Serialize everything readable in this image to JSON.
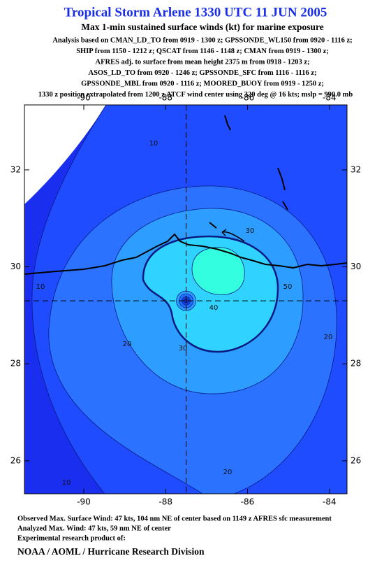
{
  "chart_data": {
    "type": "contour",
    "title": "Tropical Storm Arlene 1330 UTC 11 JUN 2005",
    "subtitle": "Max 1-min sustained surface winds (kt) for marine exposure",
    "notes": [
      "Analysis based on  CMAN_LD_TO from 0919 - 1300 z;  GPSSONDE_WL150 from 0920 - 1116 z;",
      "SHIP from 1150 - 1212 z;  QSCAT from 1146 - 1148 z;  CMAN from 0919 - 1300 z;",
      "AFRES adj. to surface from mean height 2375 m from 0918 - 1203 z;",
      "ASOS_LD_TO from 0920 - 1246 z;  GPSSONDE_SFC from 1116 - 1116 z;",
      "GPSSONDE_MBL from 0920 - 1116 z;  MOORED_BUOY from 0919 - 1250 z;",
      "1330 z position extrapolated from 1200 z ATCF wind center using 320 deg @ 16 kts; mslp = 990.0 mb"
    ],
    "xlim": [
      -91.45,
      -83.57
    ],
    "ylim": [
      25.32,
      33.34
    ],
    "xticks": [
      -90,
      -88,
      -86,
      -84
    ],
    "yticks": [
      26,
      28,
      30,
      32
    ],
    "background_color": "#1a2ef0",
    "contours": [
      {
        "level": 10,
        "color": "#1f4cff"
      },
      {
        "level": 20,
        "color": "#2a72ff"
      },
      {
        "level": 30,
        "color": "#2d9eff"
      },
      {
        "level": 40,
        "color": "#30d2ff"
      },
      {
        "level": 50,
        "color": "#33ffe0"
      }
    ],
    "contour_labels": [
      10,
      10,
      10,
      20,
      20,
      20,
      30,
      30,
      40,
      50
    ],
    "center": {
      "x": -87.5,
      "y": 29.3
    },
    "footer": [
      "Observed Max. Surface Wind: 47 kts, 104 nm NE of center based on 1149 z AFRES sfc measurement",
      "Analyzed Max. Wind: 47 kts, 59 nm NE of center",
      "Experimental research product of:"
    ],
    "credit": "NOAA / AOML / Hurricane Research Division"
  }
}
